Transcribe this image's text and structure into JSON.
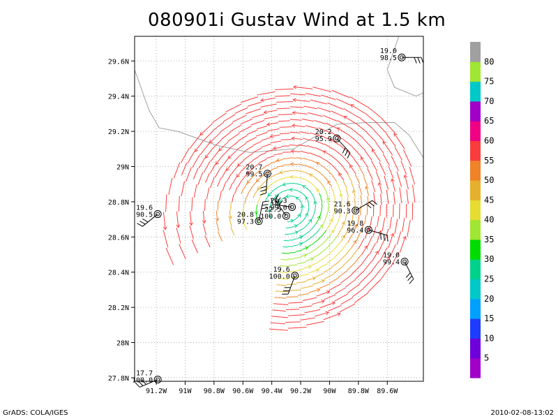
{
  "title": "080901i Gustav Wind at 1.5 km",
  "footer": {
    "left": "GrADS: COLA/IGES",
    "right": "2010-02-08-13:02"
  },
  "map": {
    "lon_range": [
      -91.35,
      -89.35
    ],
    "lat_range": [
      27.78,
      29.74
    ],
    "lat_ticks": [
      {
        "v": 27.8,
        "label": "27.8N"
      },
      {
        "v": 28.0,
        "label": "28N"
      },
      {
        "v": 28.2,
        "label": "28.2N"
      },
      {
        "v": 28.4,
        "label": "28.4N"
      },
      {
        "v": 28.6,
        "label": "28.6N"
      },
      {
        "v": 28.8,
        "label": "28.8N"
      },
      {
        "v": 29.0,
        "label": "29N"
      },
      {
        "v": 29.2,
        "label": "29.2N"
      },
      {
        "v": 29.4,
        "label": "29.4N"
      },
      {
        "v": 29.6,
        "label": "29.6N"
      }
    ],
    "lon_ticks": [
      {
        "v": -91.2,
        "label": "91.2W"
      },
      {
        "v": -91.0,
        "label": "91W"
      },
      {
        "v": -90.8,
        "label": "90.8W"
      },
      {
        "v": -90.6,
        "label": "90.6W"
      },
      {
        "v": -90.4,
        "label": "90.4W"
      },
      {
        "v": -90.2,
        "label": "90.2W"
      },
      {
        "v": -90.0,
        "label": "90W"
      },
      {
        "v": -89.8,
        "label": "89.8W"
      },
      {
        "v": -89.6,
        "label": "89.6W"
      }
    ],
    "center": {
      "lon": -90.28,
      "lat": 28.76
    },
    "stations": [
      {
        "lon": -89.5,
        "lat": 29.62,
        "t": "19.0",
        "p": "98.5"
      },
      {
        "lon": -89.95,
        "lat": 29.16,
        "t": "20.2",
        "p": "95.9"
      },
      {
        "lon": -90.43,
        "lat": 28.96,
        "t": "20.7",
        "p": "99.5"
      },
      {
        "lon": -91.19,
        "lat": 28.73,
        "t": "19.6",
        "p": "90.5"
      },
      {
        "lon": -90.26,
        "lat": 28.77,
        "t": "21.3",
        "p": "99.0"
      },
      {
        "lon": -90.3,
        "lat": 28.72,
        "t": "22.5",
        "p": "100.0"
      },
      {
        "lon": -90.49,
        "lat": 28.69,
        "t": "20.8",
        "p": "97.3"
      },
      {
        "lon": -89.82,
        "lat": 28.75,
        "t": "21.6",
        "p": "90.3"
      },
      {
        "lon": -89.73,
        "lat": 28.64,
        "t": "19.8",
        "p": "96.4"
      },
      {
        "lon": -89.48,
        "lat": 28.46,
        "t": "19.0",
        "p": "99.4"
      },
      {
        "lon": -90.24,
        "lat": 28.38,
        "t": "19.6",
        "p": "100.0"
      },
      {
        "lon": -91.19,
        "lat": 27.79,
        "t": "17.7",
        "p": "100.0"
      }
    ]
  },
  "colorbar": {
    "labels": [
      "5",
      "10",
      "15",
      "20",
      "25",
      "30",
      "35",
      "40",
      "45",
      "50",
      "55",
      "60",
      "65",
      "70",
      "75",
      "80"
    ],
    "colors": [
      "#a000c8",
      "#6e00dc",
      "#1e3cff",
      "#00a0ff",
      "#00c8c8",
      "#00d28c",
      "#00dc00",
      "#a0e632",
      "#e6dc32",
      "#e6af2d",
      "#f08228",
      "#fa3c3c",
      "#f00082",
      "#a000c8",
      "#00c8c8",
      "#a0e632",
      "#a0a0a0"
    ]
  },
  "chart_data": {
    "type": "map",
    "title": "080901i Gustav Wind at 1.5 km",
    "xlabel": "",
    "ylabel": "",
    "xlim": [
      "91.3W",
      "89.4W"
    ],
    "ylim": [
      "27.8N",
      "29.7N"
    ],
    "legend": "colorbar right, wind speed bins 5–80"
  }
}
